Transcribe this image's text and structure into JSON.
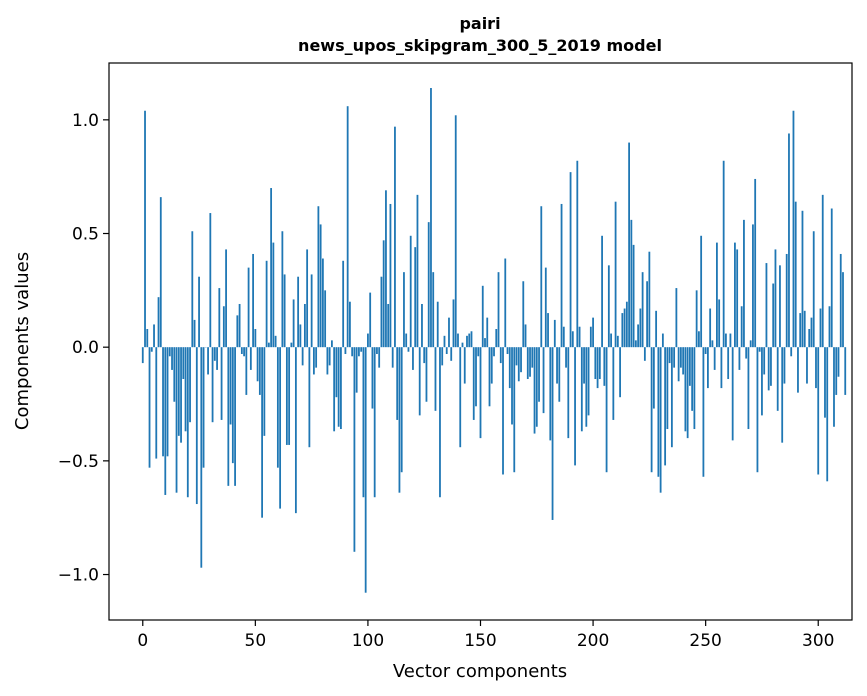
{
  "chart_data": {
    "type": "bar",
    "title_line1": "pairi",
    "title_line2": "news_upos_skipgram_300_5_2019 model",
    "xlabel": "Vector components",
    "ylabel": "Components values",
    "xlim": [
      -15,
      315
    ],
    "ylim": [
      -1.2,
      1.25
    ],
    "xticks": [
      0,
      50,
      100,
      150,
      200,
      250,
      300
    ],
    "yticks": [
      -1.0,
      -0.5,
      0.0,
      0.5,
      1.0
    ],
    "ytick_labels": [
      "−1.0",
      "−0.5",
      "0.0",
      "0.5",
      "1.0"
    ],
    "xtick_labels": [
      "0",
      "50",
      "100",
      "150",
      "200",
      "250",
      "300"
    ],
    "bar_color": "#1f77b4",
    "x_start": 0,
    "values": [
      -0.07,
      1.04,
      0.08,
      -0.53,
      -0.02,
      0.1,
      -0.49,
      0.22,
      0.66,
      -0.48,
      -0.65,
      -0.48,
      -0.04,
      -0.1,
      -0.24,
      -0.64,
      -0.39,
      -0.42,
      -0.14,
      -0.37,
      -0.66,
      -0.33,
      0.51,
      0.12,
      -0.69,
      0.31,
      -0.97,
      -0.53,
      0.0,
      -0.12,
      0.59,
      -0.33,
      -0.06,
      -0.1,
      0.26,
      -0.32,
      0.18,
      0.43,
      -0.61,
      -0.34,
      -0.51,
      -0.61,
      0.14,
      0.19,
      -0.03,
      -0.04,
      -0.21,
      0.35,
      -0.1,
      0.41,
      0.08,
      -0.15,
      -0.21,
      -0.75,
      -0.39,
      0.38,
      0.02,
      0.7,
      0.46,
      0.05,
      -0.53,
      -0.71,
      0.51,
      0.32,
      -0.43,
      -0.43,
      0.02,
      0.21,
      -0.73,
      0.31,
      0.1,
      -0.08,
      0.19,
      0.43,
      -0.44,
      0.32,
      -0.12,
      -0.09,
      0.62,
      0.54,
      0.39,
      0.25,
      -0.12,
      -0.08,
      0.03,
      -0.37,
      -0.22,
      -0.35,
      -0.36,
      0.38,
      -0.03,
      1.06,
      0.2,
      -0.04,
      -0.9,
      -0.2,
      -0.04,
      -0.02,
      -0.66,
      -1.08,
      0.06,
      0.24,
      -0.27,
      -0.66,
      -0.03,
      -0.09,
      0.31,
      0.47,
      0.69,
      0.19,
      0.63,
      -0.09,
      0.97,
      -0.32,
      -0.64,
      -0.55,
      0.33,
      0.06,
      -0.02,
      0.49,
      -0.1,
      0.44,
      0.67,
      -0.3,
      0.19,
      -0.07,
      -0.24,
      0.55,
      1.14,
      0.33,
      -0.28,
      0.2,
      -0.66,
      -0.08,
      0.05,
      -0.03,
      0.13,
      -0.06,
      0.21,
      1.02,
      0.06,
      -0.44,
      0.02,
      -0.16,
      0.05,
      0.06,
      0.07,
      -0.32,
      -0.26,
      -0.04,
      -0.4,
      0.27,
      0.04,
      0.13,
      -0.26,
      -0.16,
      -0.04,
      0.08,
      0.33,
      -0.07,
      -0.56,
      0.39,
      -0.03,
      -0.18,
      -0.34,
      -0.55,
      -0.08,
      -0.15,
      -0.11,
      0.29,
      0.1,
      -0.14,
      -0.13,
      -0.09,
      -0.38,
      -0.35,
      -0.24,
      0.62,
      -0.29,
      0.35,
      0.15,
      -0.41,
      -0.76,
      0.12,
      -0.16,
      -0.24,
      0.63,
      0.09,
      -0.09,
      -0.4,
      0.77,
      0.07,
      -0.52,
      0.82,
      0.09,
      -0.37,
      -0.16,
      -0.35,
      -0.3,
      0.09,
      0.13,
      -0.14,
      -0.18,
      -0.14,
      0.49,
      -0.17,
      -0.55,
      0.36,
      0.06,
      -0.32,
      0.64,
      0.05,
      -0.22,
      0.15,
      0.17,
      0.2,
      0.9,
      0.56,
      0.45,
      0.03,
      0.1,
      0.17,
      0.33,
      -0.06,
      0.29,
      0.42,
      -0.55,
      -0.27,
      0.16,
      -0.57,
      -0.64,
      0.06,
      -0.52,
      -0.36,
      -0.07,
      -0.44,
      -0.09,
      0.26,
      -0.15,
      -0.09,
      -0.12,
      -0.37,
      -0.4,
      -0.17,
      -0.28,
      -0.36,
      0.25,
      0.07,
      0.49,
      -0.57,
      -0.03,
      -0.18,
      0.17,
      0.03,
      -0.1,
      0.46,
      0.21,
      -0.18,
      0.82,
      0.06,
      -0.14,
      0.06,
      -0.41,
      0.46,
      0.43,
      -0.1,
      0.18,
      0.56,
      -0.05,
      -0.36,
      0.03,
      0.54,
      0.74,
      -0.55,
      -0.02,
      -0.3,
      -0.12,
      0.37,
      -0.19,
      -0.17,
      0.28,
      0.43,
      -0.28,
      0.36,
      -0.42,
      -0.16,
      0.41,
      0.94,
      -0.04,
      1.04,
      0.64,
      -0.2,
      0.15,
      0.6,
      0.16,
      -0.16,
      0.08,
      0.13,
      0.51,
      -0.18,
      -0.56,
      0.17,
      0.67,
      -0.31,
      -0.59,
      0.18,
      0.61,
      -0.35,
      -0.21,
      -0.13,
      0.41,
      0.33,
      -0.21
    ]
  }
}
